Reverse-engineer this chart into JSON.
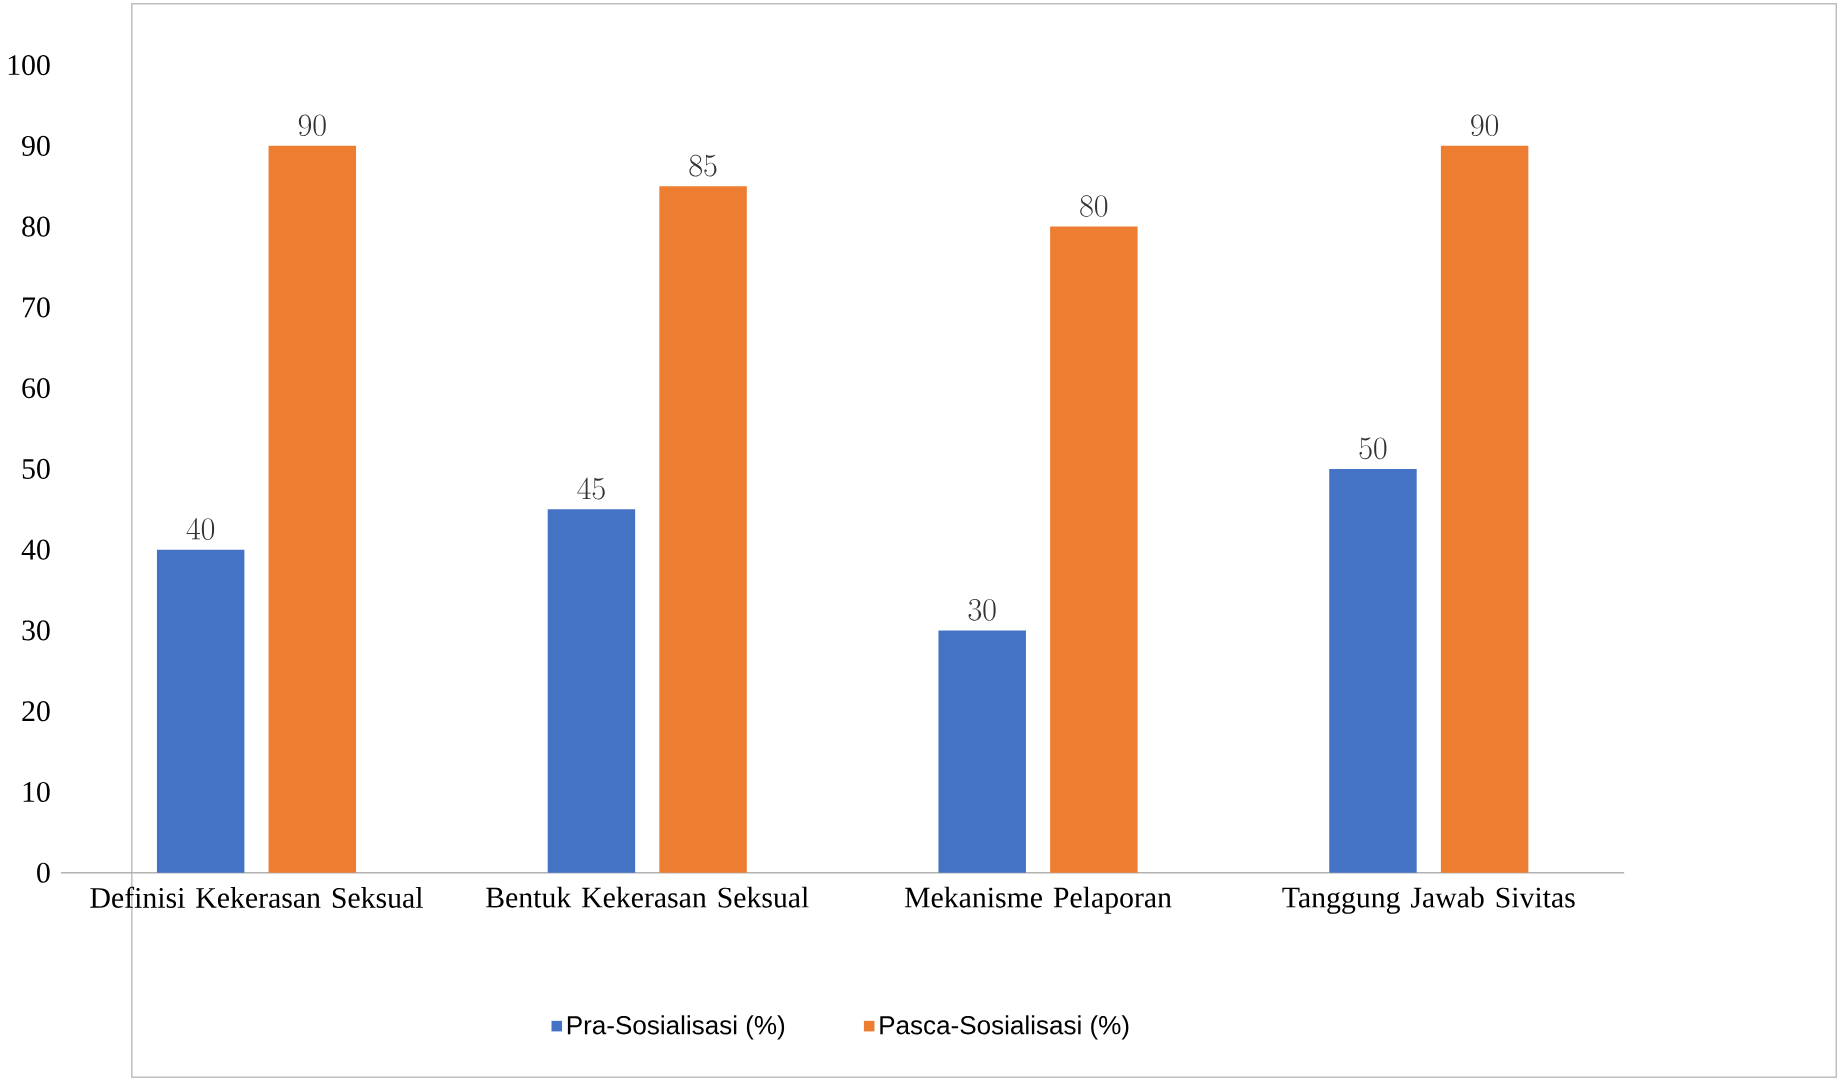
{
  "chart_data": {
    "type": "bar",
    "categories": [
      "Definisi Kekerasan Seksual",
      "Bentuk Kekerasan Seksual",
      "Mekanisme Pelaporan",
      "Tanggung Jawab Sivitas"
    ],
    "series": [
      {
        "name": "Pra-Sosialisasi (%)",
        "color": "#4472c4",
        "values": [
          40,
          45,
          30,
          50
        ]
      },
      {
        "name": "Pasca-Sosialisasi (%)",
        "color": "#ed7d31",
        "values": [
          90,
          85,
          80,
          90
        ]
      }
    ],
    "ylim": [
      0,
      100
    ],
    "yticks": [
      0,
      10,
      20,
      30,
      40,
      50,
      60,
      70,
      80,
      90,
      100
    ],
    "data_labels": true,
    "legend": "bottom"
  }
}
